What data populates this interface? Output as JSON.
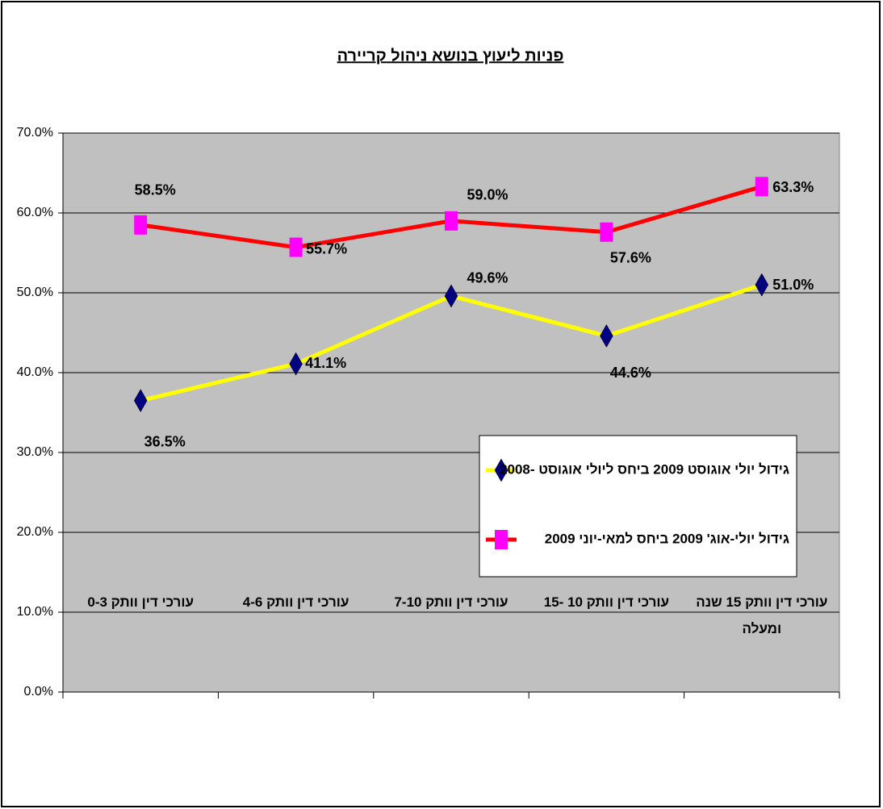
{
  "chart_data": {
    "type": "line",
    "title": "פניות ליעוץ בנושא ניהול קריירה",
    "categories": [
      "עורכי דין וותק 0-3",
      "עורכי דין וותק 4-6",
      "עורכי דין וותק 7-10",
      "עורכי דין וותק 10 -15",
      "עורכי דין וותק 15 שנה ומעלה"
    ],
    "series": [
      {
        "name": "גידול יולי אוגוסט 2009 ביחס ליולי אוגוסט -2008",
        "color": "#ffff00",
        "marker_color": "#000080",
        "marker": "diamond",
        "values": [
          36.5,
          41.1,
          49.6,
          44.6,
          51.0
        ],
        "value_labels": [
          "36.5%",
          "41.1%",
          "49.6%",
          "44.6%",
          "51.0%"
        ]
      },
      {
        "name": "גידול יולי-אוג' 2009 ביחס למאי-יוני 2009",
        "color": "#ff0000",
        "marker_color": "#ff00ff",
        "marker": "square",
        "values": [
          58.5,
          55.7,
          59.0,
          57.6,
          63.3
        ],
        "value_labels": [
          "58.5%",
          "55.7%",
          "59.0%",
          "57.6%",
          "63.3%"
        ]
      }
    ],
    "ylim": [
      0,
      70
    ],
    "yticks": [
      {
        "value": 0,
        "label": "0.0%"
      },
      {
        "value": 10,
        "label": "10.0%"
      },
      {
        "value": 20,
        "label": "20.0%"
      },
      {
        "value": 30,
        "label": "30.0%"
      },
      {
        "value": 40,
        "label": "40.0%"
      },
      {
        "value": 50,
        "label": "50.0%"
      },
      {
        "value": 60,
        "label": "60.0%"
      },
      {
        "value": 70,
        "label": "70.0%"
      }
    ],
    "grid": true,
    "plot_background": "#c0c0c0"
  }
}
